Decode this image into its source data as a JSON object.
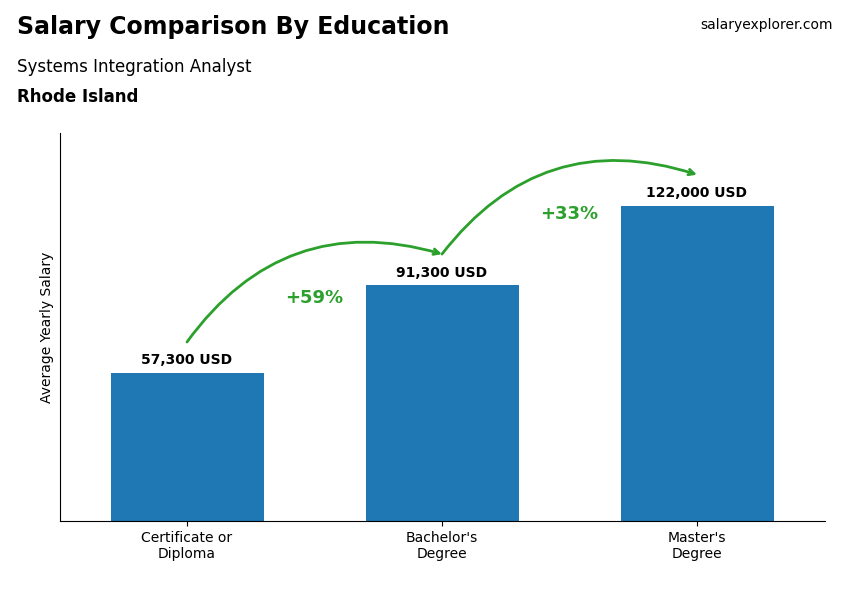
{
  "chart_data": {
    "type": "bar",
    "title": "Salary Comparison By Education",
    "subtitle": [
      "Systems Integration Analyst",
      "Rhode Island"
    ],
    "categories": [
      "Certificate or\nDiploma",
      "Bachelor's\nDegree",
      "Master's\nDegree"
    ],
    "values": [
      57300,
      91300,
      122000
    ],
    "value_labels": [
      "57,300 USD",
      "91,300 USD",
      "122,000 USD"
    ],
    "data_labels": true,
    "ylabel": "Average Yearly Salary",
    "ylim": [
      0,
      150000
    ],
    "yticks": [],
    "tick_labels": "x",
    "grid": false,
    "annotations": [
      {
        "text": "+59%",
        "from": "Certificate or\nDiploma",
        "to": "Bachelor's\nDegree"
      },
      {
        "text": "+33%",
        "from": "Bachelor's\nDegree",
        "to": "Master's\nDegree"
      },
      {
        "text": "salaryexplorer.com"
      }
    ]
  }
}
